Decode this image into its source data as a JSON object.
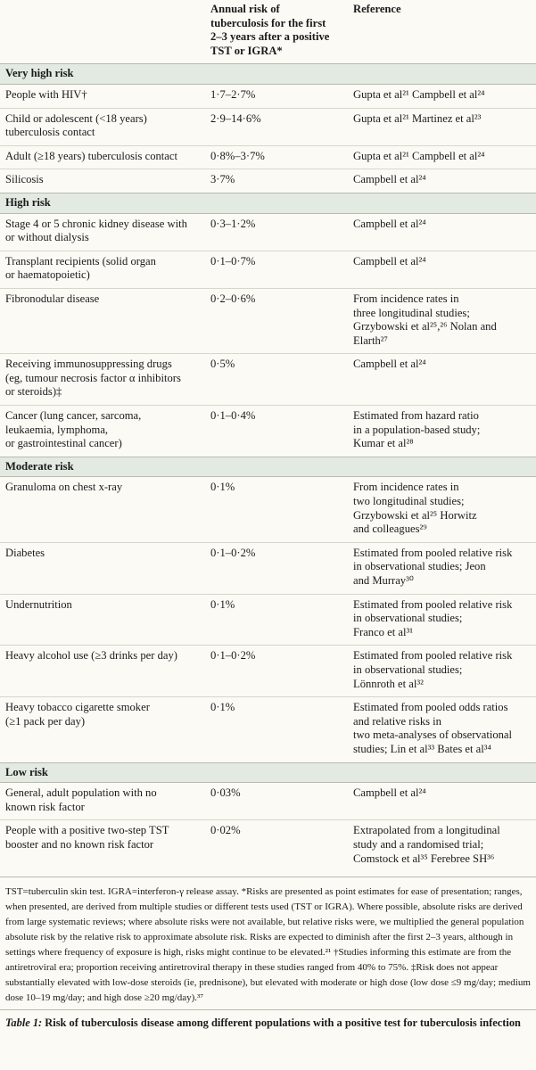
{
  "header": {
    "risk_column": "Annual risk of\ntuberculosis for the first\n2–3 years after a positive\nTST or IGRA*",
    "reference_column": "Reference"
  },
  "groups": [
    {
      "label": "Very high risk",
      "rows": [
        {
          "population": "People with HIV†",
          "risk": "1·7–2·7%",
          "reference": "Gupta et al²¹ Campbell et al²⁴"
        },
        {
          "population": "Child or adolescent (<18 years)\ntuberculosis contact",
          "risk": "2·9–14·6%",
          "reference": "Gupta et al²¹ Martinez et al²³"
        },
        {
          "population": "Adult (≥18 years) tuberculosis contact",
          "risk": "0·8%–3·7%",
          "reference": "Gupta et al²¹ Campbell et al²⁴"
        },
        {
          "population": "Silicosis",
          "risk": "3·7%",
          "reference": "Campbell et al²⁴"
        }
      ]
    },
    {
      "label": "High risk",
      "rows": [
        {
          "population": "Stage 4 or 5 chronic kidney disease with\nor without dialysis",
          "risk": "0·3–1·2%",
          "reference": "Campbell et al²⁴"
        },
        {
          "population": "Transplant recipients (solid organ\nor haematopoietic)",
          "risk": "0·1–0·7%",
          "reference": "Campbell et al²⁴"
        },
        {
          "population": "Fibronodular disease",
          "risk": "0·2–0·6%",
          "reference": "From incidence rates in\nthree longitudinal studies;\nGrzybowski et al²⁵,²⁶ Nolan and\nElarth²⁷"
        },
        {
          "population": "Receiving immunosuppressing drugs\n(eg, tumour necrosis factor α inhibitors\nor steroids)‡",
          "risk": "0·5%",
          "reference": "Campbell et al²⁴"
        },
        {
          "population": "Cancer (lung cancer, sarcoma,\nleukaemia, lymphoma,\nor gastrointestinal cancer)",
          "risk": "0·1–0·4%",
          "reference": "Estimated from hazard ratio\nin a population-based study;\nKumar et al²⁸"
        }
      ]
    },
    {
      "label": "Moderate risk",
      "rows": [
        {
          "population": "Granuloma on chest x-ray",
          "risk": "0·1%",
          "reference": "From incidence rates in\ntwo longitudinal studies;\nGrzybowski et al²⁵ Horwitz\nand colleagues²⁹"
        },
        {
          "population": "Diabetes",
          "risk": "0·1–0·2%",
          "reference": "Estimated from pooled relative risk\nin observational studies; Jeon\nand Murray³⁰"
        },
        {
          "population": "Undernutrition",
          "risk": "0·1%",
          "reference": "Estimated from pooled relative risk\nin observational studies;\nFranco et al³¹"
        },
        {
          "population": "Heavy alcohol use (≥3 drinks per day)",
          "risk": "0·1–0·2%",
          "reference": "Estimated from pooled relative risk\nin observational studies;\nLönnroth et al³²"
        },
        {
          "population": "Heavy tobacco cigarette smoker\n(≥1 pack per day)",
          "risk": "0·1%",
          "reference": "Estimated from pooled odds ratios\nand relative risks in\ntwo meta-analyses of observational\nstudies; Lin et al³³ Bates et al³⁴"
        }
      ]
    },
    {
      "label": "Low risk",
      "rows": [
        {
          "population": "General, adult population with no\nknown risk factor",
          "risk": "0·03%",
          "reference": "Campbell et al²⁴"
        },
        {
          "population": "People with a positive two-step TST\nbooster and no known risk factor",
          "risk": "0·02%",
          "reference": "Extrapolated from a longitudinal\nstudy and a randomised trial;\nComstock et al³⁵ Ferebree SH³⁶"
        }
      ]
    }
  ],
  "footnote": "TST=tuberculin skin test. IGRA=interferon-γ release assay. *Risks are presented as point estimates for ease of presentation; ranges, when presented, are derived from multiple studies or different tests used (TST or IGRA). Where possible, absolute risks are derived from large systematic reviews; where absolute risks were not available, but relative risks were, we multiplied the general population absolute risk by the relative risk to approximate absolute risk. Risks are expected to diminish after the first 2–3 years, although in settings where frequency of exposure is high, risks might continue to be elevated.²¹ †Studies informing this estimate are from the antiretroviral era; proportion receiving antiretroviral therapy in these studies ranged from 40% to 75%. ‡Risk does not appear substantially elevated with low-dose steroids (ie, prednisone), but elevated with moderate or high dose (low dose ≤9 mg/day; medium dose 10–19 mg/day; and high dose ≥20 mg/day).³⁷",
  "caption": {
    "label": "Table 1:",
    "title": "Risk of tuberculosis disease among different populations with a positive test for tuberculosis infection"
  }
}
